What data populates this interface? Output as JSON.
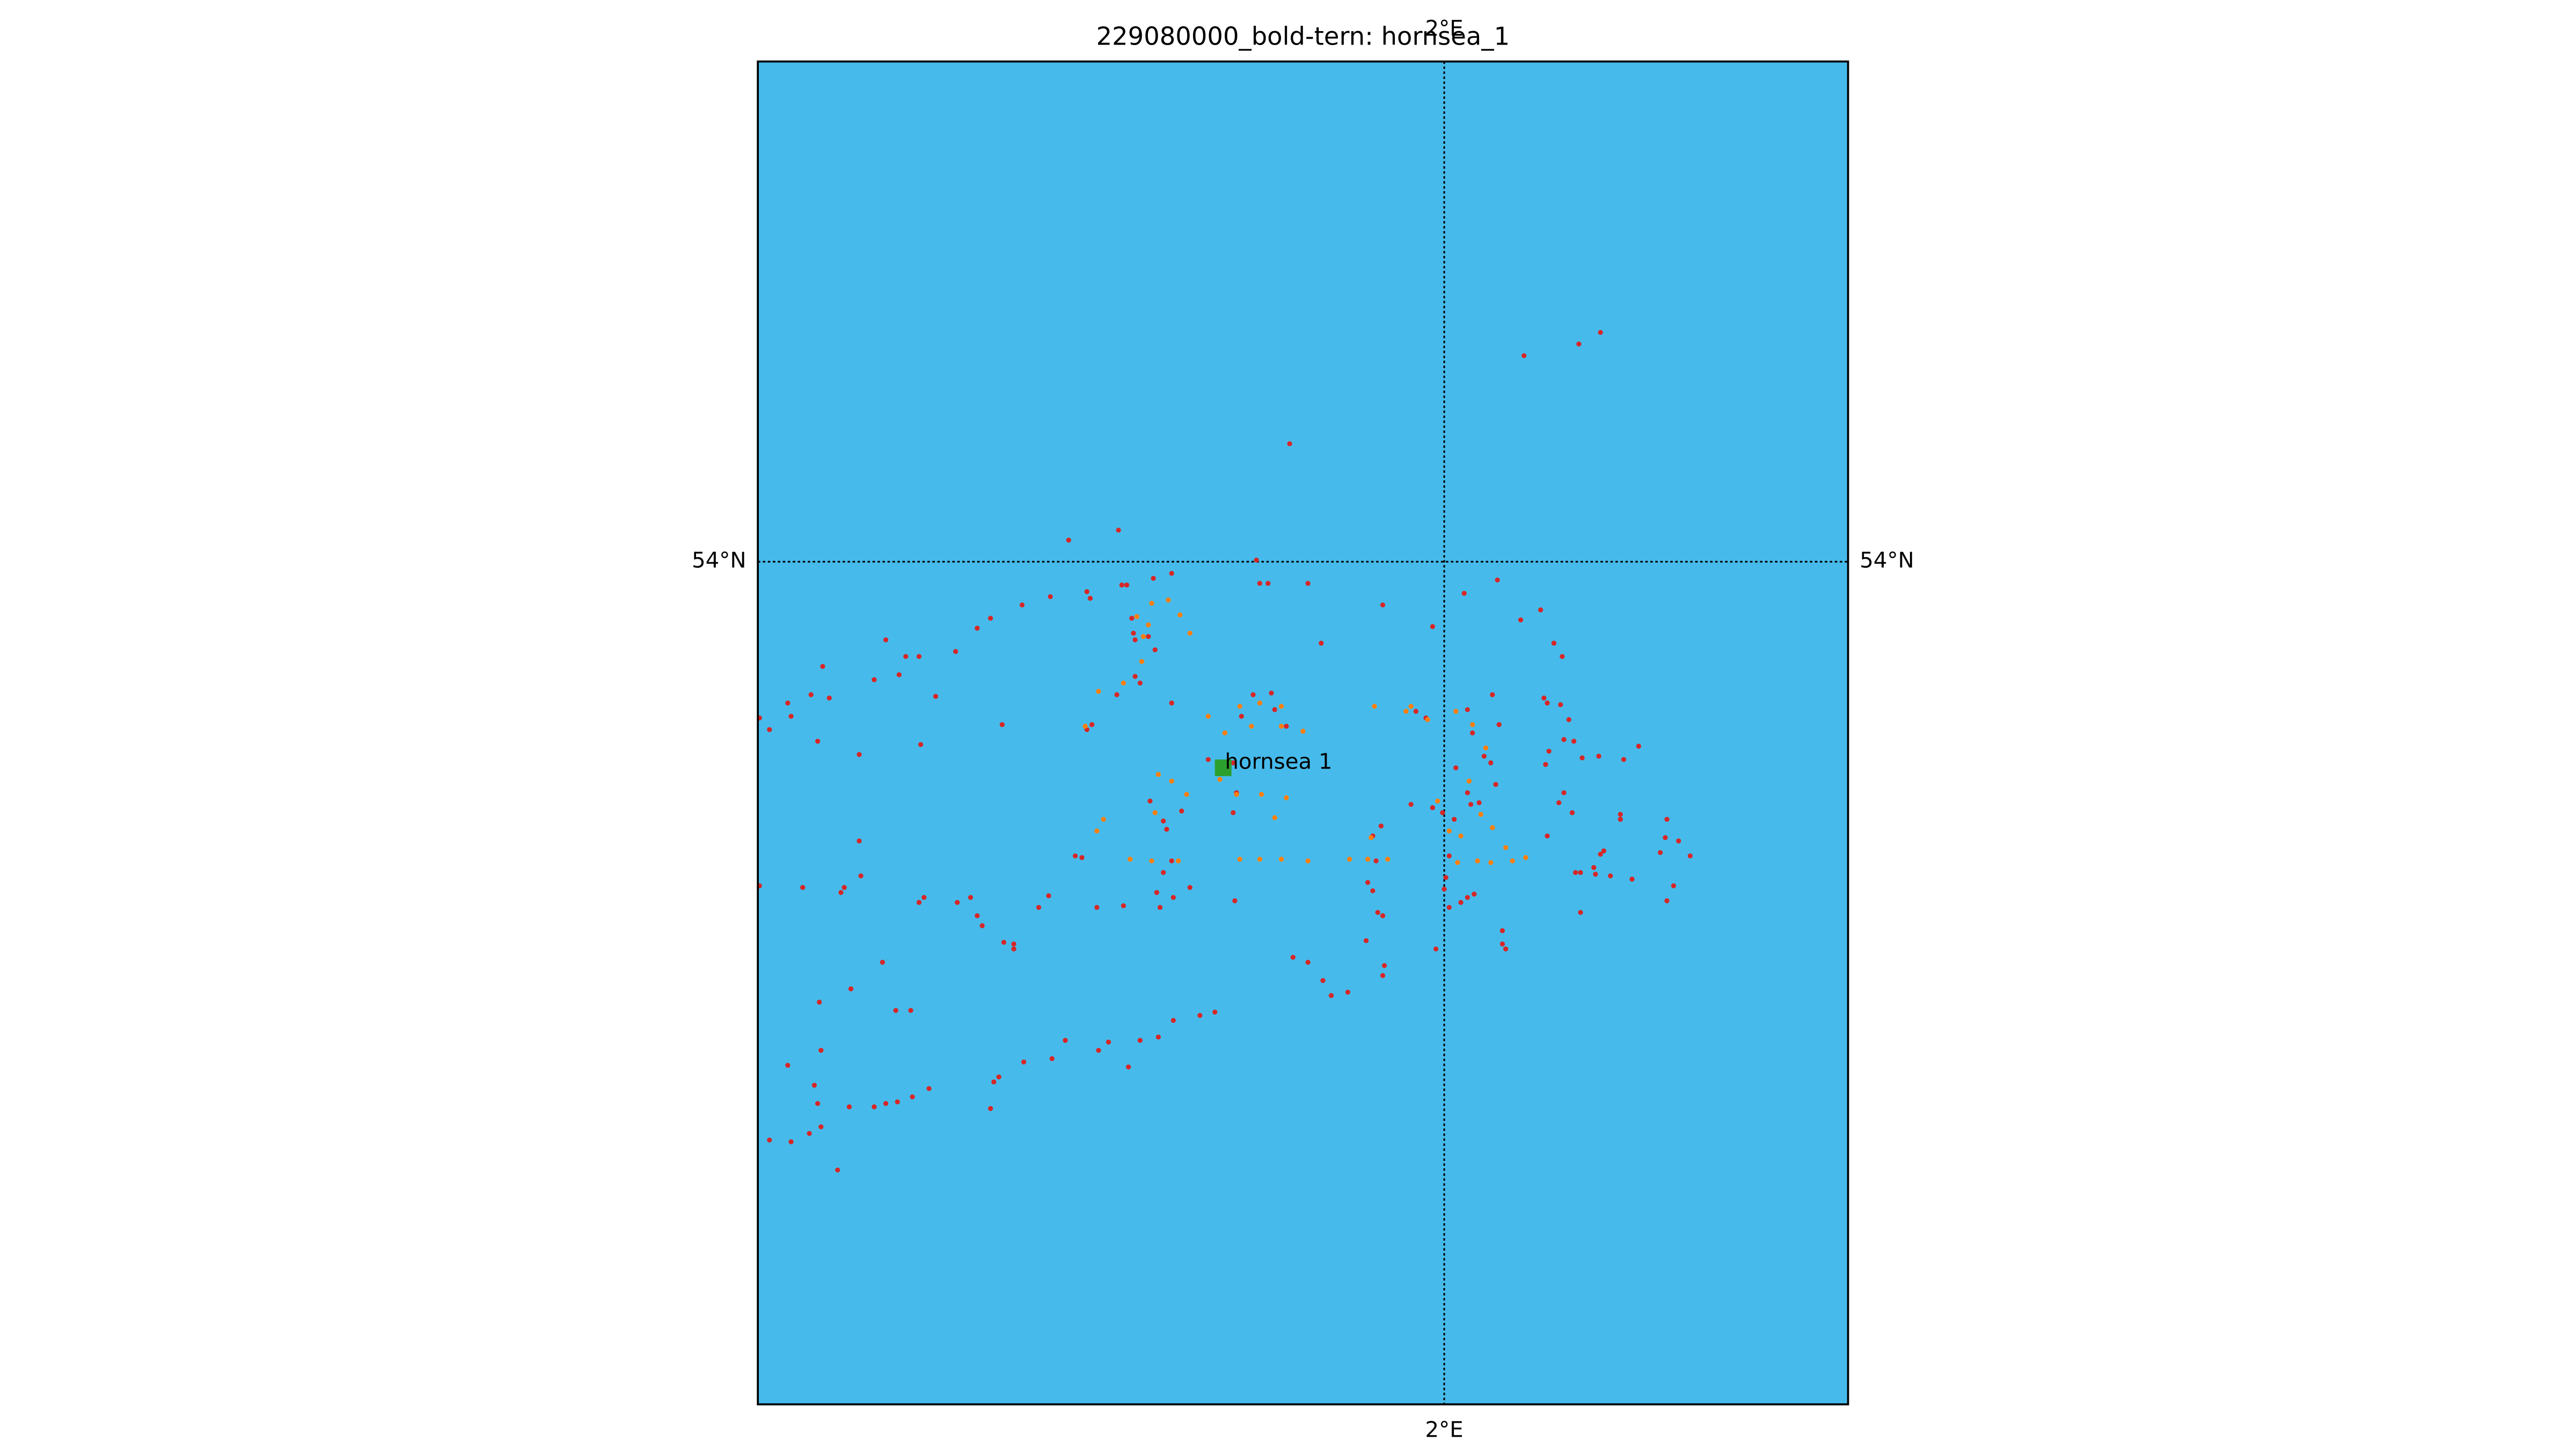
{
  "chart_data": {
    "type": "scatter",
    "title": "229080000_bold-tern: hornsea_1",
    "background": "#46bbeb",
    "grid": true,
    "xlim": [
      1.3805,
      2.3645
    ],
    "ylim": [
      53.493,
      54.301
    ],
    "xticks": [
      {
        "value": 2,
        "label": "2°E"
      }
    ],
    "yticks": [
      {
        "value": 54,
        "label": "54°N"
      }
    ],
    "series": [
      {
        "color": "#d62728",
        "x": [
          2.072,
          2.1215,
          2.141,
          1.8605,
          1.661,
          1.706,
          1.8305,
          1.8335,
          1.841,
          1.877,
          1.754,
          1.7375,
          1.709,
          1.7135,
          1.6775,
          1.6805,
          1.6445,
          1.619,
          1.5905,
          1.5785,
          1.559,
          1.496,
          1.514,
          1.508,
          1.4855,
          1.439,
          1.4285,
          1.4075,
          1.445,
          1.382,
          1.391,
          1.4105,
          1.4345,
          1.526,
          1.541,
          1.5275,
          1.472,
          1.601,
          1.9445,
          1.9895,
          2.018,
          2.048,
          2.069,
          2.087,
          2.099,
          2.1065,
          2.09,
          2.093,
          2.105,
          2.1125,
          2.108,
          2.117,
          2.0945,
          2.0915,
          2.1245,
          2.1395,
          2.162,
          2.1755,
          2.108,
          2.1035,
          2.1155,
          2.093,
          2.1185,
          2.123,
          2.135,
          2.141,
          2.1365,
          2.144,
          2.159,
          2.159,
          2.15,
          2.1695,
          2.195,
          2.201,
          2.1995,
          2.2115,
          2.222,
          2.207,
          2.201,
          2.123,
          2.0435,
          2.0495,
          2.021,
          2.0255,
          2.036,
          2.042,
          2.0465,
          2.0315,
          2.021,
          2.0105,
          1.9895,
          1.9985,
          2.009,
          2.024,
          2.0045,
          2.0015,
          2.0,
          2.0045,
          2.015,
          2.021,
          2.027,
          2.0525,
          2.0525,
          2.0555,
          1.9925,
          1.97,
          1.9745,
          1.9835,
          1.9355,
          1.943,
          1.9385,
          1.931,
          1.9355,
          1.94,
          1.9445,
          1.9295,
          1.946,
          1.9445,
          1.913,
          1.898,
          1.8905,
          1.8635,
          1.877,
          1.811,
          1.7555,
          1.7705,
          1.7405,
          1.7435,
          1.7105,
          1.6865,
          1.673,
          1.667,
          1.634,
          1.643,
          1.583,
          1.5785,
          1.5725,
          1.5605,
          1.5305,
          1.526,
          1.4585,
          1.4555,
          1.421,
          1.382,
          1.472,
          1.4735,
          1.493,
          1.4645,
          1.436,
          1.505,
          1.5185,
          1.4375,
          1.4075,
          1.4315,
          1.4345,
          1.4105,
          1.391,
          1.427,
          1.4375,
          1.4525,
          1.463,
          1.4855,
          1.496,
          1.5065,
          1.52,
          1.535,
          1.598,
          1.5935,
          1.5905,
          1.6205,
          1.646,
          1.658,
          1.688,
          1.697,
          1.715,
          1.7255,
          1.742,
          1.7555,
          1.7795,
          1.793,
          1.6025,
          1.6115,
          1.6115,
          1.6775,
          1.682,
          1.7045,
          1.721,
          1.7255,
          1.754,
          1.8275,
          1.844,
          1.8575,
          1.847,
          1.889,
          1.8095,
          1.763,
          1.7465,
          1.7495,
          1.754,
          1.7465,
          1.8125,
          1.787,
          1.8095,
          1.817,
          1.7345,
          1.721,
          1.7195,
          1.718,
          1.733,
          1.739
        ],
        "y": [
          54.124,
          54.131,
          54.138,
          54.071,
          54.013,
          54.019,
          54.001,
          53.987,
          53.987,
          53.987,
          53.993,
          53.99,
          53.986,
          53.986,
          53.982,
          53.978,
          53.979,
          53.974,
          53.966,
          53.96,
          53.946,
          53.953,
          53.943,
          53.932,
          53.929,
          53.937,
          53.92,
          53.915,
          53.918,
          53.906,
          53.899,
          53.907,
          53.892,
          53.943,
          53.919,
          53.89,
          53.884,
          53.902,
          53.974,
          53.961,
          53.981,
          53.989,
          53.965,
          53.971,
          53.951,
          53.943,
          53.918,
          53.915,
          53.914,
          53.905,
          53.893,
          53.892,
          53.886,
          53.878,
          53.882,
          53.883,
          53.881,
          53.889,
          53.861,
          53.855,
          53.849,
          53.835,
          53.813,
          53.813,
          53.816,
          53.824,
          53.812,
          53.826,
          53.848,
          53.845,
          53.811,
          53.809,
          53.825,
          53.845,
          53.834,
          53.832,
          53.823,
          53.805,
          53.796,
          53.789,
          53.92,
          53.902,
          53.911,
          53.897,
          53.883,
          53.879,
          53.866,
          53.855,
          53.861,
          53.876,
          53.852,
          53.849,
          53.845,
          53.854,
          53.823,
          53.81,
          53.803,
          53.792,
          53.795,
          53.798,
          53.8,
          53.778,
          53.77,
          53.767,
          53.767,
          53.854,
          53.91,
          53.906,
          53.835,
          53.841,
          53.82,
          53.807,
          53.802,
          53.789,
          53.787,
          53.772,
          53.757,
          53.751,
          53.741,
          53.739,
          53.748,
          53.762,
          53.759,
          53.796,
          53.798,
          53.804,
          53.801,
          53.792,
          53.793,
          53.792,
          53.822,
          53.823,
          53.792,
          53.799,
          53.781,
          53.787,
          53.798,
          53.795,
          53.798,
          53.795,
          53.804,
          53.801,
          53.804,
          53.805,
          53.832,
          53.811,
          53.759,
          53.743,
          53.735,
          53.73,
          53.73,
          53.706,
          53.697,
          53.685,
          53.674,
          53.651,
          53.652,
          53.656,
          53.66,
          53.634,
          53.672,
          53.672,
          53.674,
          53.675,
          53.678,
          53.683,
          53.69,
          53.687,
          53.671,
          53.699,
          53.701,
          53.712,
          53.706,
          53.711,
          53.696,
          53.712,
          53.714,
          53.724,
          53.727,
          53.729,
          53.771,
          53.77,
          53.767,
          53.899,
          53.902,
          53.92,
          53.931,
          53.927,
          53.915,
          53.92,
          53.921,
          53.901,
          53.911,
          53.951,
          53.849,
          53.85,
          53.844,
          53.839,
          53.82,
          53.813,
          53.861,
          53.881,
          53.879,
          53.907,
          53.856,
          53.953,
          53.957,
          53.966,
          53.955,
          53.947
        ]
      },
      {
        "color": "#ff7f0e",
        "x": [
          1.736,
          1.751,
          1.7615,
          1.7705,
          1.7225,
          1.733,
          1.7285,
          1.727,
          1.7105,
          1.688,
          1.676,
          1.787,
          1.802,
          1.8155,
          1.8335,
          1.853,
          1.8725,
          1.853,
          1.826,
          1.7675,
          1.754,
          1.742,
          1.7975,
          1.8125,
          1.835,
          1.8575,
          1.847,
          1.6865,
          1.6925,
          1.7165,
          1.736,
          1.76,
          1.8155,
          1.8335,
          1.853,
          1.877,
          1.9145,
          1.931,
          1.949,
          1.934,
          1.937,
          1.9655,
          1.97,
          1.985,
          2.0105,
          2.0255,
          1.994,
          2.0045,
          2.015,
          2.012,
          2.03,
          2.042,
          2.0615,
          2.0735,
          2.0555,
          2.0435,
          2.033,
          2.0375,
          2.0225,
          1.739
        ],
        "y": [
          53.975,
          53.977,
          53.968,
          53.957,
          53.967,
          53.962,
          53.955,
          53.94,
          53.927,
          53.922,
          53.901,
          53.907,
          53.897,
          53.913,
          53.915,
          53.901,
          53.898,
          53.913,
          53.901,
          53.86,
          53.868,
          53.872,
          53.869,
          53.86,
          53.86,
          53.858,
          53.846,
          53.838,
          53.845,
          53.821,
          53.82,
          53.82,
          53.821,
          53.821,
          53.821,
          53.82,
          53.821,
          53.821,
          53.821,
          53.834,
          53.913,
          53.91,
          53.913,
          53.905,
          53.91,
          53.902,
          53.856,
          53.838,
          53.835,
          53.819,
          53.82,
          53.819,
          53.82,
          53.822,
          53.828,
          53.84,
          53.848,
          53.888,
          53.868,
          53.849
        ]
      }
    ],
    "sites": [
      {
        "label": "hornsea 1",
        "x": 1.8005,
        "y": 53.876,
        "color": "#2ca02c"
      }
    ]
  }
}
